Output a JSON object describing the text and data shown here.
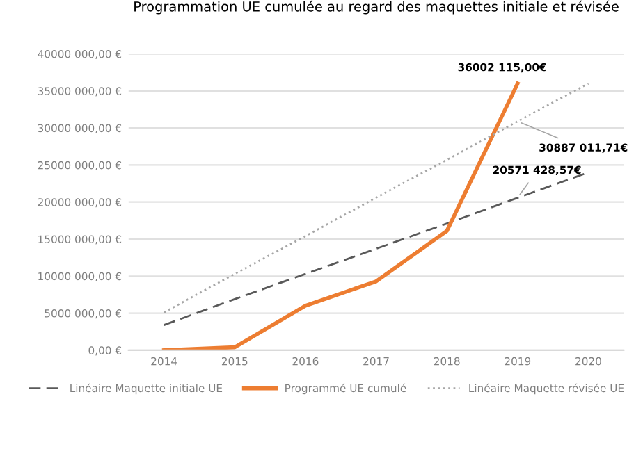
{
  "chart_data": {
    "type": "line",
    "title": "Programmation UE cumulée au regard des maquettes initiale et révisée",
    "categories": [
      "2014",
      "2015",
      "2016",
      "2017",
      "2018",
      "2019",
      "2020"
    ],
    "series": [
      {
        "name": "Linéaire Maquette initiale UE",
        "color": "#595959",
        "line_style": "dashed",
        "values": [
          3400000,
          6900000,
          10300000,
          13700000,
          17100000,
          20571428.57,
          24000000
        ]
      },
      {
        "name": "Programmé UE cumulé",
        "color": "#ed7d31",
        "line_style": "solid",
        "values": [
          0,
          400000,
          6000000,
          9300000,
          16100000,
          36002115,
          null
        ]
      },
      {
        "name": "Linéaire Maquette révisée UE",
        "color": "#a6a6a6",
        "line_style": "dotted",
        "values": [
          5100000,
          10300000,
          15400000,
          20600000,
          25700000,
          30887011.71,
          36000000
        ]
      }
    ],
    "annotations": [
      {
        "text": "36002 115,00€",
        "x": "2019",
        "y": 36002115
      },
      {
        "text": "30887 011,71€",
        "x": "2019",
        "y": 30887011.71
      },
      {
        "text": "20571 428,57€",
        "x": "2019",
        "y": 20571428.57
      }
    ],
    "ylim": [
      0,
      40000000
    ],
    "yticks": [
      {
        "value": 0,
        "label": "0,00 €"
      },
      {
        "value": 5000000,
        "label": "5000 000,00 €"
      },
      {
        "value": 10000000,
        "label": "10000 000,00 €"
      },
      {
        "value": 15000000,
        "label": "15000 000,00 €"
      },
      {
        "value": 20000000,
        "label": "20000 000,00 €"
      },
      {
        "value": 25000000,
        "label": "25000 000,00 €"
      },
      {
        "value": 30000000,
        "label": "30000 000,00 €"
      },
      {
        "value": 35000000,
        "label": "35000 000,00 €"
      },
      {
        "value": 40000000,
        "label": "40000 000,00 €"
      }
    ],
    "grid": "y",
    "legend": "bottom",
    "marker": "none"
  }
}
